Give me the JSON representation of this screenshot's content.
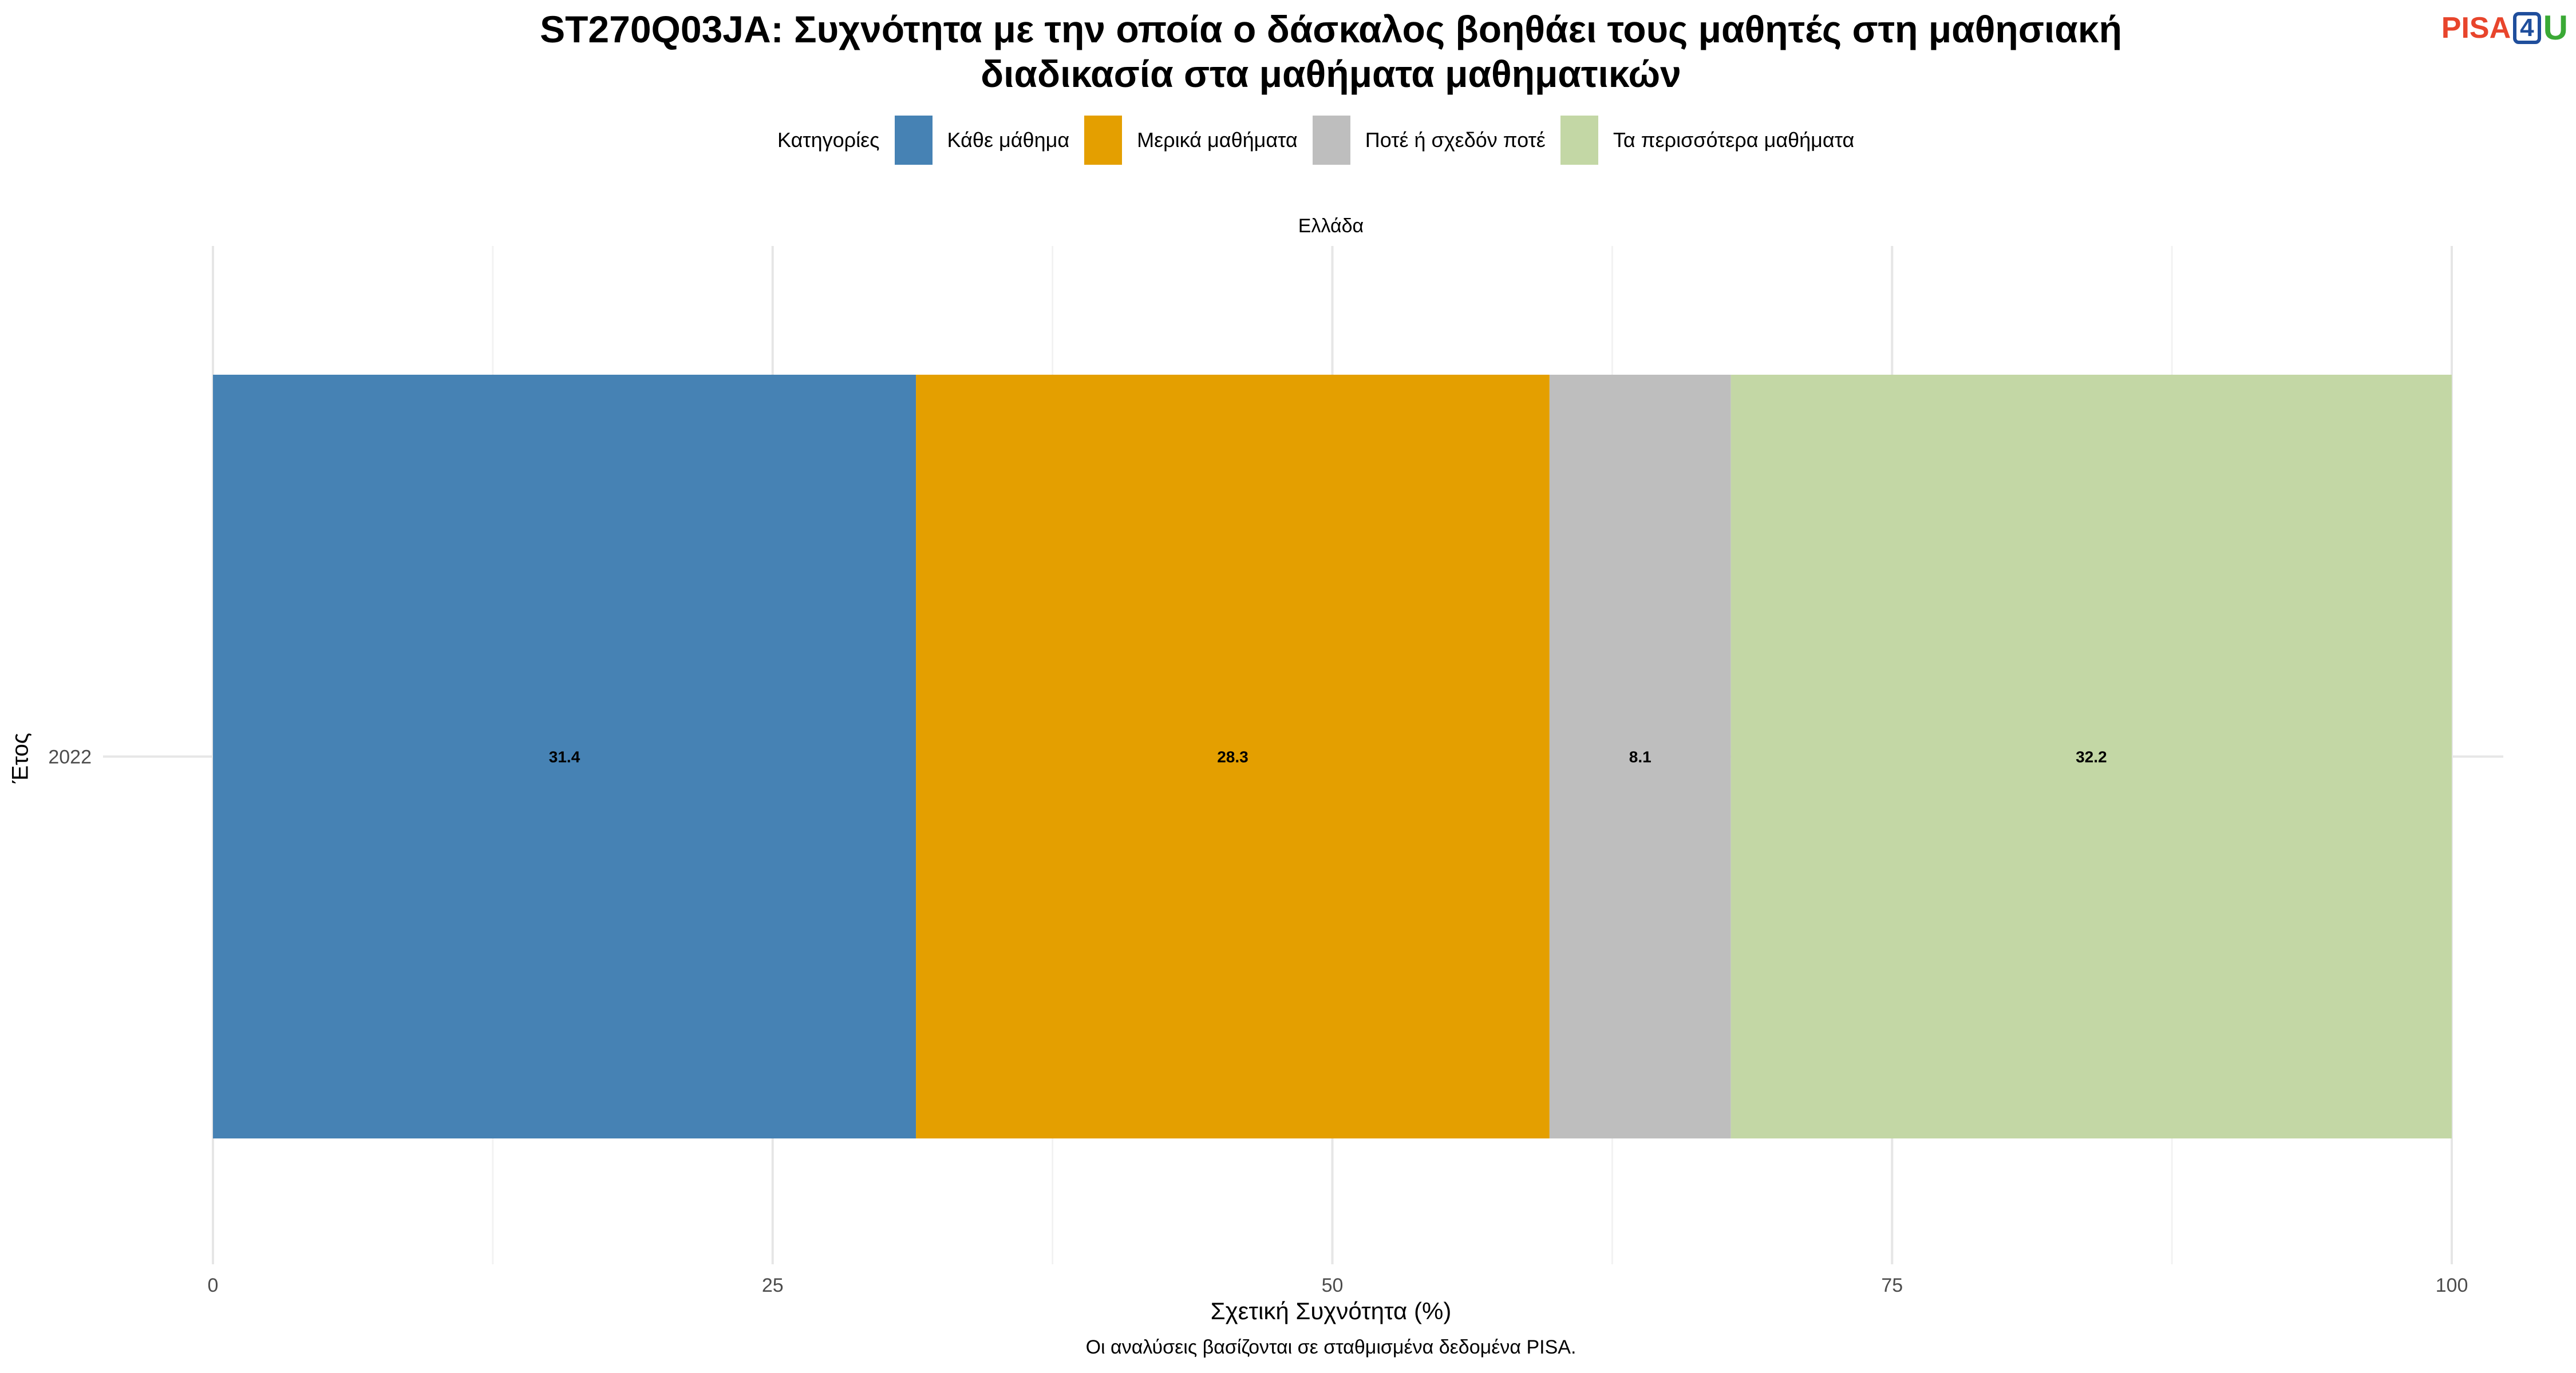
{
  "title_line1": "ST270Q03JA: Συχνότητα με την οποία ο δάσκαλος βοηθάει τους μαθητές στη μαθησιακή",
  "title_line2": "διαδικασία στα μαθήματα μαθηματικών",
  "logo": {
    "pisa": "PISA",
    "four": "4",
    "u": "U"
  },
  "legend": {
    "title": "Κατηγορίες",
    "items": [
      {
        "label": "Κάθε μάθημα",
        "color": "#4682b4"
      },
      {
        "label": "Μερικά μαθήματα",
        "color": "#e49f00"
      },
      {
        "label": "Ποτέ ή σχεδόν ποτέ",
        "color": "#bebebe"
      },
      {
        "label": "Τα περισσότερα μαθήματα",
        "color": "#c3d7a5"
      }
    ]
  },
  "facet_label": "Ελλάδα",
  "caption": "Οι αναλύσεις βασίζονται σε σταθμισμένα δεδομένα PISA.",
  "chart_data": {
    "type": "bar",
    "orientation": "horizontal",
    "stacked": true,
    "categories": [
      "2022"
    ],
    "series": [
      {
        "name": "Κάθε μάθημα",
        "values": [
          31.4
        ],
        "color": "#4682b4"
      },
      {
        "name": "Μερικά μαθήματα",
        "values": [
          28.3
        ],
        "color": "#e49f00"
      },
      {
        "name": "Ποτέ ή σχεδόν ποτέ",
        "values": [
          8.1
        ],
        "color": "#bebebe"
      },
      {
        "name": "Τα περισσότερα μαθήματα",
        "values": [
          32.2
        ],
        "color": "#c3d7a5"
      }
    ],
    "xlabel": "Σχετική Συχνότητα (%)",
    "ylabel": "Έτος",
    "xlim": [
      0,
      100
    ],
    "xticks": [
      "0",
      "25",
      "50",
      "75",
      "100"
    ],
    "grid": true,
    "legend_position": "top"
  }
}
